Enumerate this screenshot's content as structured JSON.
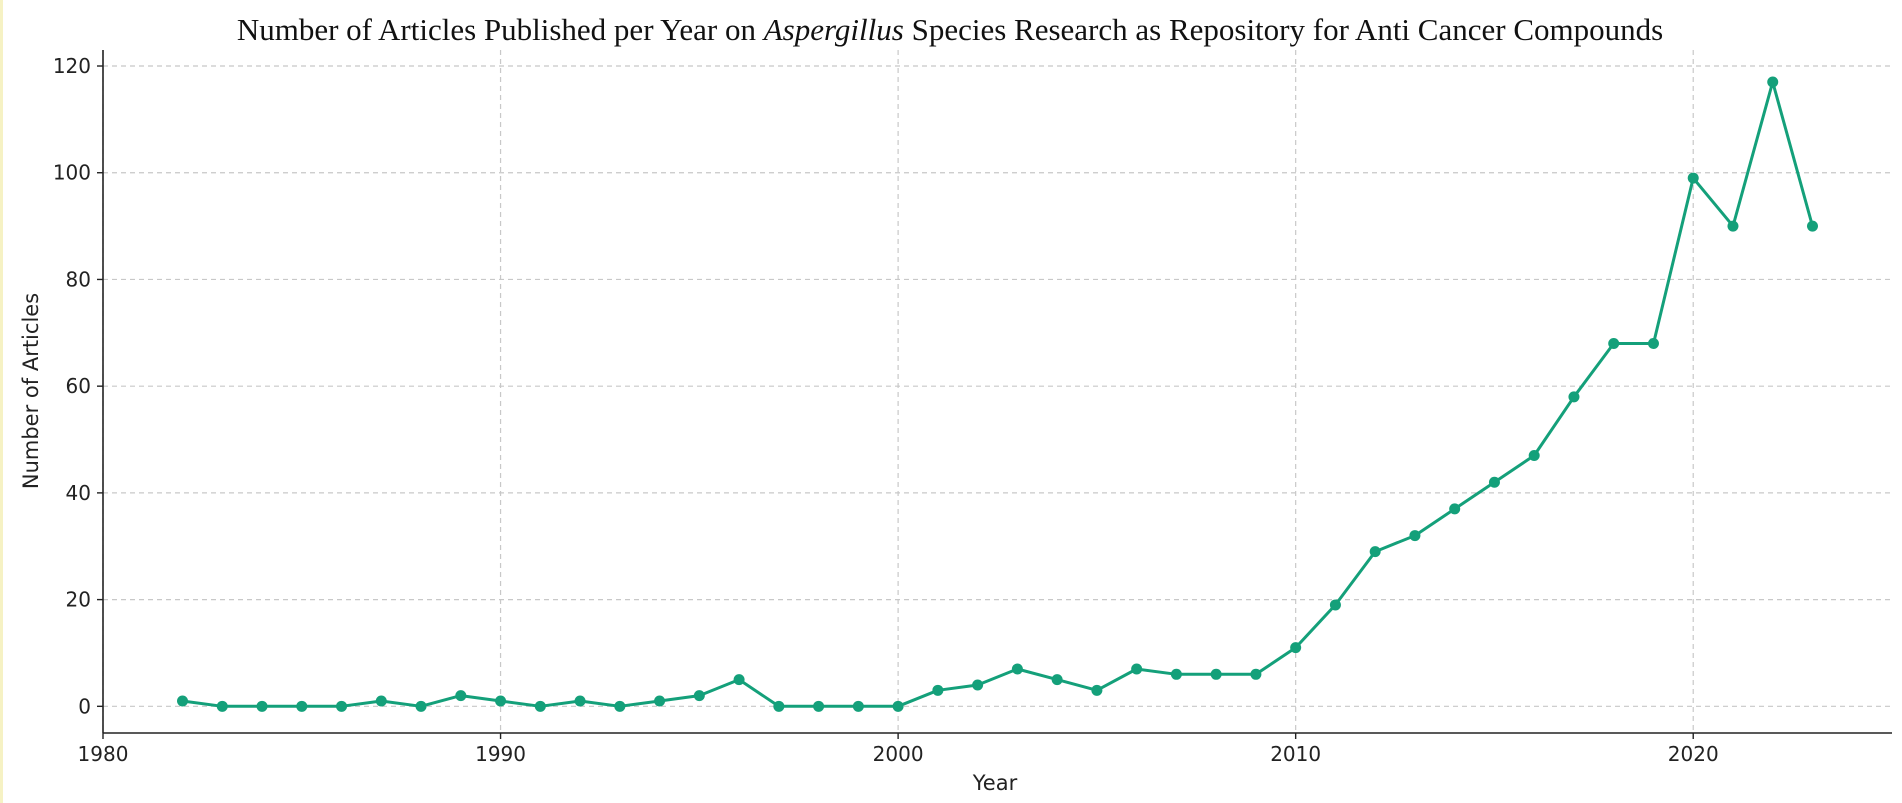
{
  "chart_data": {
    "type": "line",
    "title_parts": {
      "before": "Number of Articles Published per Year on ",
      "italic": "Aspergillus",
      "after": " Species Research as Repository for Anti Cancer Compounds"
    },
    "xlabel": "Year",
    "ylabel": "Number of Articles",
    "xlim": [
      1980,
      2025
    ],
    "ylim": [
      -5,
      123
    ],
    "xticks": [
      1980,
      1990,
      2000,
      2010,
      2020
    ],
    "yticks": [
      0,
      20,
      40,
      60,
      80,
      100,
      120
    ],
    "grid": true,
    "color": "#14a07a",
    "series": [
      {
        "name": "Articles",
        "x": [
          1982,
          1983,
          1984,
          1985,
          1986,
          1987,
          1988,
          1989,
          1990,
          1991,
          1992,
          1993,
          1994,
          1995,
          1996,
          1997,
          1998,
          1999,
          2000,
          2001,
          2002,
          2003,
          2004,
          2005,
          2006,
          2007,
          2008,
          2009,
          2010,
          2011,
          2012,
          2013,
          2014,
          2015,
          2016,
          2017,
          2018,
          2019,
          2020,
          2021,
          2022,
          2023
        ],
        "values": [
          1,
          0,
          0,
          0,
          0,
          1,
          0,
          2,
          1,
          0,
          1,
          0,
          1,
          2,
          5,
          0,
          0,
          0,
          0,
          3,
          4,
          7,
          5,
          3,
          7,
          6,
          6,
          6,
          11,
          19,
          29,
          32,
          37,
          42,
          47,
          58,
          68,
          68,
          99,
          90,
          117,
          90
        ]
      }
    ]
  }
}
